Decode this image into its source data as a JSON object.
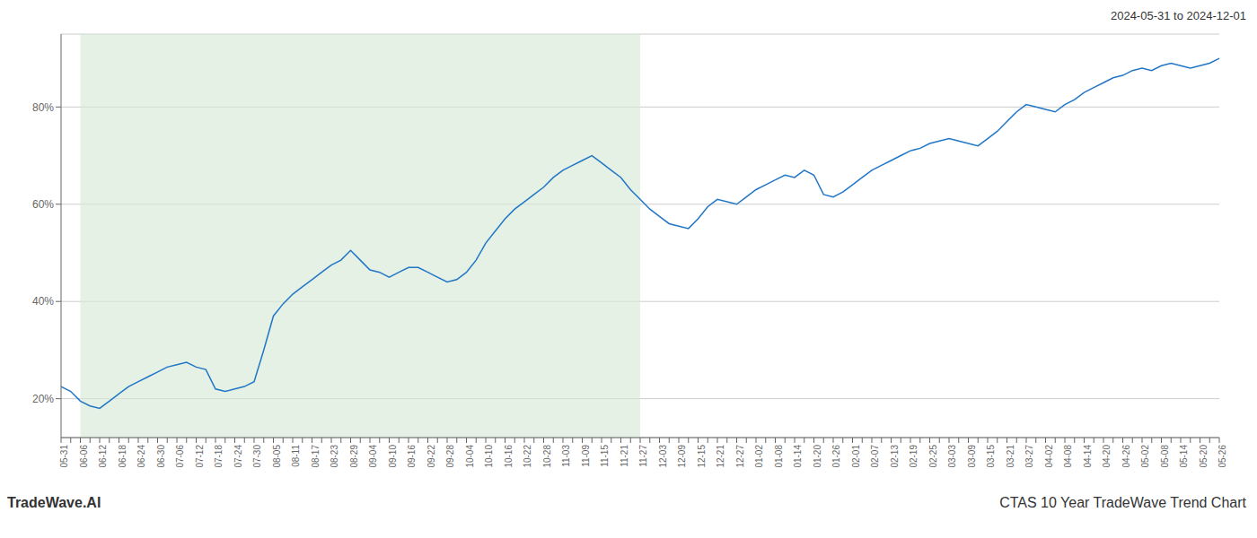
{
  "chart_data": {
    "type": "line",
    "title": "CTAS 10 Year TradeWave Trend Chart",
    "subtitle": "2024-05-31 to 2024-12-01",
    "annotations": [
      "TradeWave.AI"
    ],
    "categories": [
      "05-31",
      null,
      "06-06",
      null,
      "06-12",
      null,
      "06-18",
      null,
      "06-24",
      null,
      "06-30",
      null,
      "07-06",
      null,
      "07-12",
      null,
      "07-18",
      null,
      "07-24",
      null,
      "07-30",
      null,
      "08-05",
      null,
      "08-11",
      null,
      "08-17",
      null,
      "08-23",
      null,
      "08-29",
      null,
      "09-04",
      null,
      "09-10",
      null,
      "09-16",
      null,
      "09-22",
      null,
      "09-28",
      null,
      "10-04",
      null,
      "10-10",
      null,
      "10-16",
      null,
      "10-22",
      null,
      "10-28",
      null,
      "11-03",
      null,
      "11-09",
      null,
      "11-15",
      null,
      "11-21",
      null,
      "11-27",
      null,
      "12-03",
      null,
      "12-09",
      null,
      "12-15",
      null,
      "12-21",
      null,
      "12-27",
      null,
      "01-02",
      null,
      "01-08",
      null,
      "01-14",
      null,
      "01-20",
      null,
      "01-26",
      null,
      "02-01",
      null,
      "02-07",
      null,
      "02-13",
      null,
      "02-19",
      null,
      "02-25",
      null,
      "03-03",
      null,
      "03-09",
      null,
      "03-15",
      null,
      "03-21",
      null,
      "03-27",
      null,
      "04-02",
      null,
      "04-08",
      null,
      "04-14",
      null,
      "04-20",
      null,
      "04-26",
      null,
      "05-02",
      null,
      "05-08",
      null,
      "05-14",
      null,
      "05-20",
      null,
      "05-26"
    ],
    "values": [
      22.5,
      21.5,
      19.5,
      18.5,
      18.0,
      19.5,
      21.0,
      22.5,
      23.5,
      24.5,
      25.5,
      26.5,
      27.0,
      27.5,
      26.5,
      26.0,
      22.0,
      21.5,
      22.0,
      22.5,
      23.5,
      30.0,
      37.0,
      39.5,
      41.5,
      43.0,
      44.5,
      46.0,
      47.5,
      48.5,
      50.5,
      48.5,
      46.5,
      46.0,
      45.0,
      46.0,
      47.0,
      47.0,
      46.0,
      45.0,
      44.0,
      44.5,
      46.0,
      48.5,
      52.0,
      54.5,
      57.0,
      59.0,
      60.5,
      62.0,
      63.5,
      65.5,
      67.0,
      68.0,
      69.0,
      70.0,
      68.5,
      67.0,
      65.5,
      63.0,
      61.0,
      59.0,
      57.5,
      56.0,
      55.5,
      55.0,
      57.0,
      59.5,
      61.0,
      60.5,
      60.0,
      61.5,
      63.0,
      64.0,
      65.0,
      66.0,
      65.5,
      67.0,
      66.0,
      62.0,
      61.5,
      62.5,
      64.0,
      65.5,
      67.0,
      68.0,
      69.0,
      70.0,
      71.0,
      71.5,
      72.5,
      73.0,
      73.5,
      73.0,
      72.5,
      72.0,
      73.5,
      75.0,
      77.0,
      79.0,
      80.5,
      80.0,
      79.5,
      79.0,
      80.5,
      81.5,
      83.0,
      84.0,
      85.0,
      86.0,
      86.5,
      87.5,
      88.0,
      87.5,
      88.5,
      89.0,
      88.5,
      88.0,
      88.5,
      89.0,
      90.0
    ],
    "color": "#2176c7",
    "shaded_range": [
      "06-06",
      "11-27"
    ],
    "shade_color": "#d6ead6",
    "ylim": [
      12,
      95
    ],
    "yticks": [
      {
        "value": 20,
        "label": "20%"
      },
      {
        "value": 40,
        "label": "40%"
      },
      {
        "value": 60,
        "label": "60%"
      },
      {
        "value": 80,
        "label": "80%"
      }
    ],
    "grid": true
  }
}
